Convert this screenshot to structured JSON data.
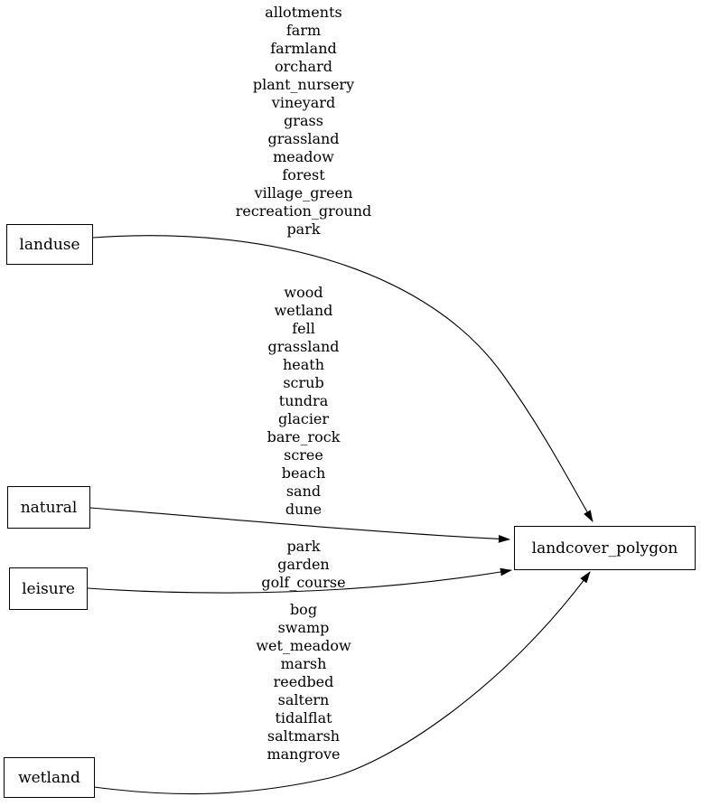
{
  "diagram": {
    "colors": {
      "background": "#ffffff",
      "stroke": "#000000",
      "text": "#000000",
      "node_fill": "#ffffff"
    },
    "nodes": {
      "landuse": {
        "label": "landuse"
      },
      "natural": {
        "label": "natural"
      },
      "leisure": {
        "label": "leisure"
      },
      "wetland": {
        "label": "wetland"
      },
      "landcover_polygon": {
        "label": "landcover_polygon"
      }
    },
    "edges": [
      {
        "from": "landuse",
        "to": "landcover_polygon",
        "labels": [
          "allotments",
          "farm",
          "farmland",
          "orchard",
          "plant_nursery",
          "vineyard",
          "grass",
          "grassland",
          "meadow",
          "forest",
          "village_green",
          "recreation_ground",
          "park"
        ]
      },
      {
        "from": "natural",
        "to": "landcover_polygon",
        "labels": [
          "wood",
          "wetland",
          "fell",
          "grassland",
          "heath",
          "scrub",
          "tundra",
          "glacier",
          "bare_rock",
          "scree",
          "beach",
          "sand",
          "dune"
        ]
      },
      {
        "from": "leisure",
        "to": "landcover_polygon",
        "labels": [
          "park",
          "garden",
          "golf_course"
        ]
      },
      {
        "from": "wetland",
        "to": "landcover_polygon",
        "labels": [
          "bog",
          "swamp",
          "wet_meadow",
          "marsh",
          "reedbed",
          "saltern",
          "tidalflat",
          "saltmarsh",
          "mangrove"
        ]
      }
    ]
  }
}
